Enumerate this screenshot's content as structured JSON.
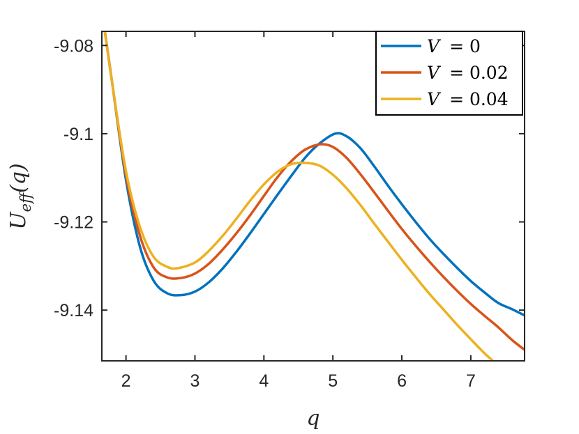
{
  "chart_data": {
    "type": "line",
    "title": "",
    "xlabel": "q",
    "ylabel": "U",
    "ylabel_sub": "eff",
    "ylabel_arg": "(q)",
    "xlim": [
      1.65,
      7.78
    ],
    "ylim": [
      -9.1515,
      -9.0768
    ],
    "x_ticks": [
      2,
      3,
      4,
      5,
      6,
      7
    ],
    "x_tick_labels": [
      "2",
      "3",
      "4",
      "5",
      "6",
      "7"
    ],
    "y_ticks": [
      -9.08,
      -9.1,
      -9.12,
      -9.14
    ],
    "y_tick_labels": [
      "-9.08",
      "-9.1",
      "-9.12",
      "-9.14"
    ],
    "grid": false,
    "legend_position": "top-right",
    "series": [
      {
        "name": "V = 0",
        "legend_var": "V",
        "legend_value": "= 0",
        "color": "#0072BD",
        "x": [
          1.65,
          1.8,
          2.0,
          2.2,
          2.4,
          2.6,
          2.8,
          3.0,
          3.2,
          3.4,
          3.6,
          3.8,
          4.0,
          4.2,
          4.4,
          4.6,
          4.8,
          5.03,
          5.2,
          5.4,
          5.6,
          5.8,
          6.0,
          6.2,
          6.4,
          6.6,
          6.8,
          7.0,
          7.2,
          7.4,
          7.6,
          7.78
        ],
        "y": [
          -9.072,
          -9.0885,
          -9.1105,
          -9.1255,
          -9.1333,
          -9.1362,
          -9.1366,
          -9.1358,
          -9.1337,
          -9.1306,
          -9.1268,
          -9.1226,
          -9.1182,
          -9.1138,
          -9.1095,
          -9.1054,
          -9.1023,
          -9.1,
          -9.1006,
          -9.1033,
          -9.1074,
          -9.1118,
          -9.116,
          -9.12,
          -9.1238,
          -9.1272,
          -9.1304,
          -9.1334,
          -9.136,
          -9.1384,
          -9.1398,
          -9.1412
        ]
      },
      {
        "name": "V = 0.02",
        "legend_var": "V",
        "legend_value": "= 0.02",
        "color": "#D95319",
        "x": [
          1.65,
          1.8,
          2.0,
          2.2,
          2.4,
          2.6,
          2.8,
          3.0,
          3.2,
          3.4,
          3.6,
          3.8,
          4.0,
          4.2,
          4.4,
          4.6,
          4.82,
          5.0,
          5.2,
          5.4,
          5.6,
          5.8,
          6.0,
          6.2,
          6.4,
          6.6,
          6.8,
          7.0,
          7.2,
          7.4,
          7.6,
          7.78
        ],
        "y": [
          -9.072,
          -9.0885,
          -9.1095,
          -9.123,
          -9.1303,
          -9.1326,
          -9.1327,
          -9.1317,
          -9.1295,
          -9.1263,
          -9.1226,
          -9.1185,
          -9.1141,
          -9.1098,
          -9.1062,
          -9.1036,
          -9.1024,
          -9.103,
          -9.1055,
          -9.1092,
          -9.1133,
          -9.1175,
          -9.1216,
          -9.1254,
          -9.129,
          -9.1324,
          -9.1356,
          -9.1386,
          -9.1413,
          -9.1439,
          -9.1468,
          -9.149
        ]
      },
      {
        "name": "V = 0.04",
        "legend_var": "V",
        "legend_value": "= 0.04",
        "color": "#EDB120",
        "x": [
          1.65,
          1.8,
          2.0,
          2.2,
          2.4,
          2.6,
          2.75,
          3.0,
          3.2,
          3.4,
          3.6,
          3.8,
          4.0,
          4.2,
          4.4,
          4.6,
          4.8,
          5.0,
          5.2,
          5.4,
          5.6,
          5.8,
          6.0,
          6.2,
          6.4,
          6.6,
          6.8,
          7.0,
          7.2,
          7.35
        ],
        "y": [
          -9.072,
          -9.0885,
          -9.1085,
          -9.121,
          -9.1279,
          -9.1302,
          -9.1305,
          -9.1292,
          -9.1266,
          -9.1232,
          -9.1193,
          -9.1152,
          -9.1115,
          -9.1086,
          -9.1069,
          -9.1066,
          -9.1072,
          -9.1093,
          -9.1124,
          -9.1162,
          -9.1204,
          -9.1245,
          -9.1286,
          -9.1325,
          -9.1363,
          -9.1398,
          -9.1433,
          -9.1466,
          -9.1498,
          -9.1519
        ]
      }
    ]
  }
}
